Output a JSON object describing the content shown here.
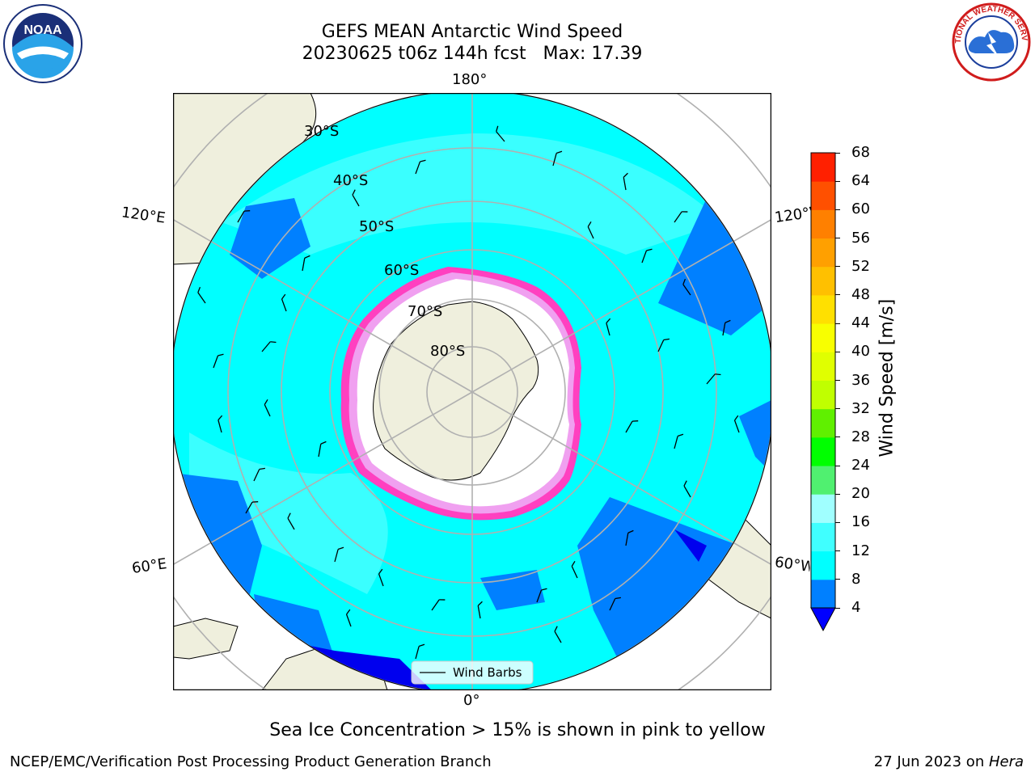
{
  "header": {
    "title_line1": "GEFS MEAN Antarctic Wind Speed",
    "title_line2": "20230625 t06z 144h fcst   Max: 17.39"
  },
  "logos": {
    "left": "noaa-logo",
    "left_text": "NOAA",
    "right": "nws-logo",
    "right_text": "NATIONAL WEATHER SERVICE"
  },
  "map": {
    "projection": "south-polar-stereographic",
    "meridian_labels": {
      "top": "180°",
      "bottom": "0°",
      "left_upper": "120°E",
      "left_lower": "60°E",
      "right_upper": "120°W",
      "right_lower": "60°W"
    },
    "latitude_labels": [
      "30°S",
      "40°S",
      "50°S",
      "60°S",
      "70°S",
      "80°S"
    ],
    "legend_label": "Wind Barbs"
  },
  "colorbar": {
    "label": "Wind Speed [m/s]",
    "ticks": [
      "4",
      "8",
      "12",
      "16",
      "20",
      "24",
      "28",
      "32",
      "36",
      "40",
      "44",
      "48",
      "52",
      "56",
      "60",
      "64",
      "68"
    ],
    "colors": [
      "#0080ff",
      "#00ffff",
      "#40ffff",
      "#a0ffff",
      "#50f070",
      "#00ff00",
      "#60f000",
      "#c0ff00",
      "#e0ff00",
      "#f8ff00",
      "#ffe000",
      "#ffc000",
      "#ffa000",
      "#ff8000",
      "#ff5000",
      "#ff2000",
      "#ff0000"
    ],
    "under_color": "#0000ff"
  },
  "footer": {
    "note": "Sea Ice Concentration > 15% is shown in pink to yellow",
    "credit_left": "NCEP/EMC/Verification Post Processing Product Generation Branch",
    "credit_right_date": "27 Jun 2023 on ",
    "credit_right_host": "Hera"
  }
}
